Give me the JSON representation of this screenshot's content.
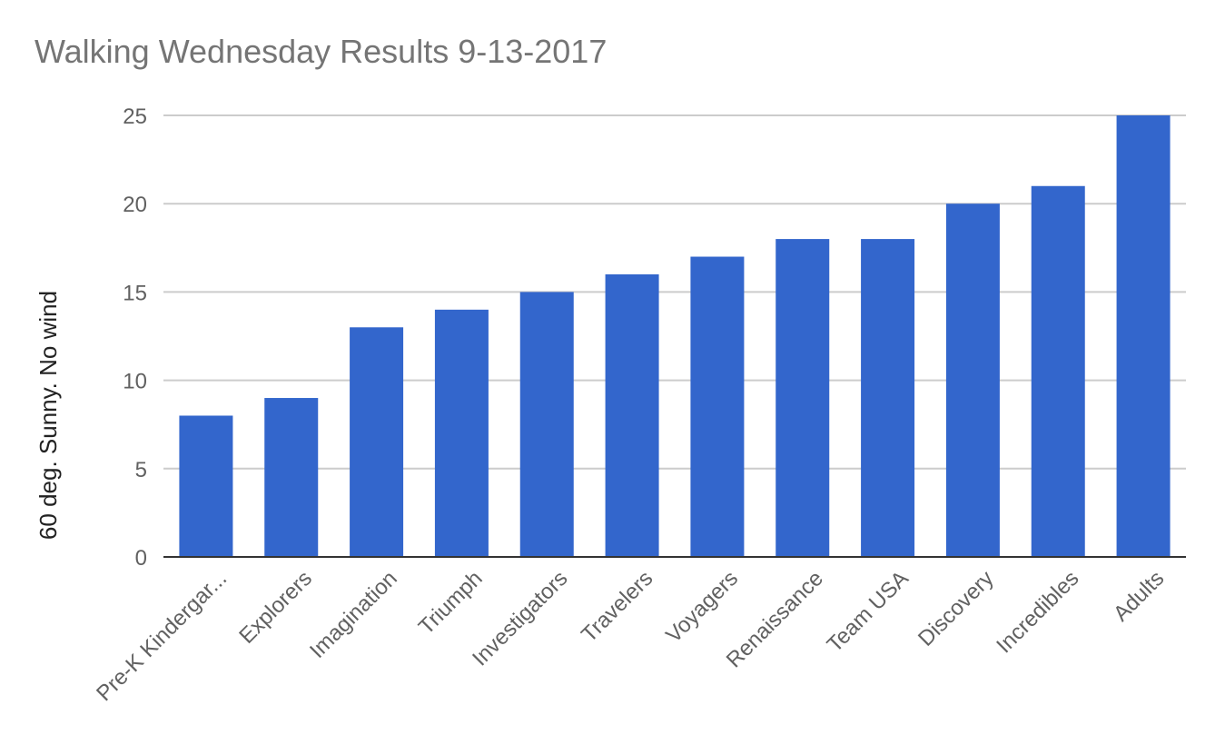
{
  "chart_data": {
    "type": "bar",
    "title": "Walking Wednesday Results 9-13-2017",
    "xlabel": "",
    "ylabel": "60 deg. Sunny. No wind",
    "categories": [
      "Pre-K Kindergar...",
      "Explorers",
      "Imagination",
      "Triumph",
      "Investigators",
      "Travelers",
      "Voyagers",
      "Renaissance",
      "Team USA",
      "Discovery",
      "Incredibles",
      "Adults"
    ],
    "values": [
      8,
      9,
      13,
      14,
      15,
      16,
      17,
      18,
      18,
      20,
      21,
      25
    ],
    "ylim": [
      0,
      25
    ],
    "yticks": [
      0,
      5,
      10,
      15,
      20,
      25
    ],
    "grid": true,
    "legend": "none",
    "bar_color": "#3366cc"
  }
}
